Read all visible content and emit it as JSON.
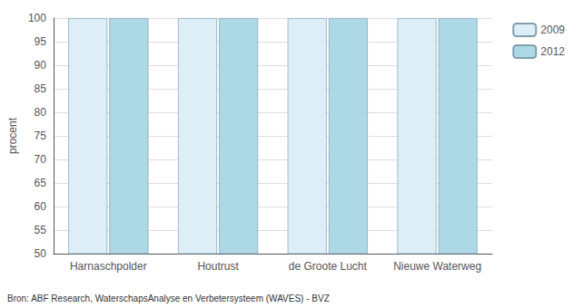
{
  "chart_data": {
    "type": "bar",
    "categories": [
      "Harnaschpolder",
      "Houtrust",
      "de Groote Lucht",
      "Nieuwe Waterweg"
    ],
    "series": [
      {
        "name": "2009",
        "color": "#ddeef7",
        "values": [
          100,
          100,
          100,
          100
        ]
      },
      {
        "name": "2012",
        "color": "#add8e6",
        "values": [
          100,
          100,
          100,
          100
        ]
      }
    ],
    "ylabel": "procent",
    "ylim": [
      50,
      100
    ],
    "yticks": [
      50,
      55,
      60,
      65,
      70,
      75,
      80,
      85,
      90,
      95,
      100
    ],
    "grid": true,
    "legend": "right",
    "annotations": [
      "Bron: ABF Research, WaterschapsAnalyse en Verbetersysteem (WAVES) - BVZ"
    ]
  }
}
